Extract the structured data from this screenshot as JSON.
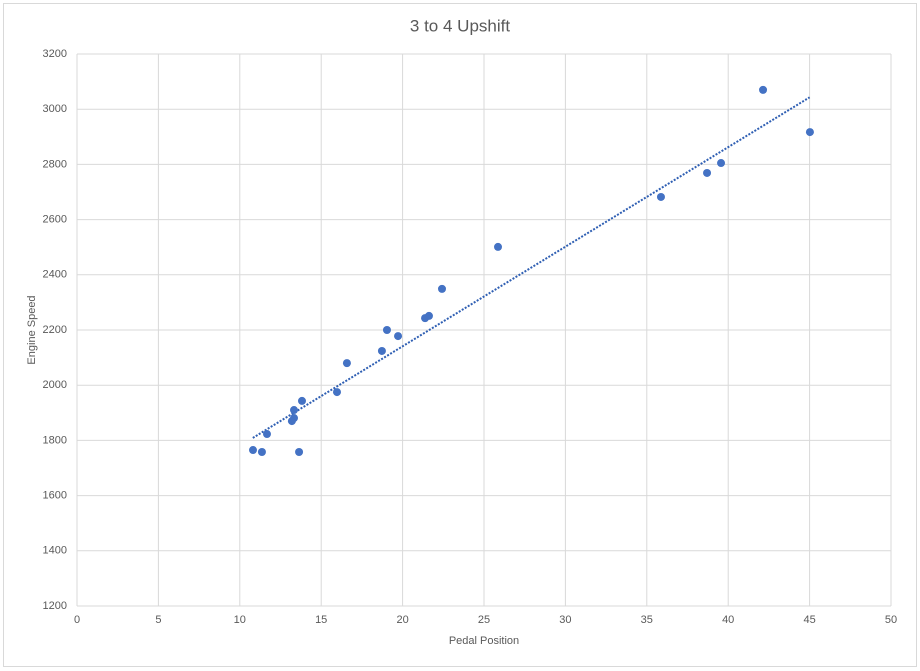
{
  "chart_data": {
    "type": "scatter",
    "title": "3 to 4 Upshift",
    "x_label": "Pedal Position",
    "y_label": "Engine Speed",
    "series": [
      {
        "color": "#4472c4",
        "x": [
          10.81,
          11.36,
          11.67,
          13.2,
          13.33,
          13.33,
          13.64,
          13.82,
          15.97,
          16.58,
          18.73,
          19.04,
          19.72,
          21.38,
          21.62,
          22.42,
          25.86,
          35.87,
          38.7,
          39.56,
          42.14,
          45.02
        ],
        "values": [
          1765,
          1758,
          1823,
          1870,
          1881,
          1910,
          1758,
          1943,
          1975,
          2080,
          2124,
          2200,
          2178,
          2243,
          2251,
          2349,
          2501,
          2682,
          2769,
          2805,
          3070,
          2917
        ]
      }
    ],
    "trendline": {
      "color": "#2f5fb3",
      "x": [
        10.8,
        45
      ],
      "values": [
        1809,
        3043
      ]
    },
    "xlim": [
      0,
      50
    ],
    "xticks": [
      0,
      5,
      10,
      15,
      20,
      25,
      30,
      35,
      40,
      45,
      50
    ],
    "ylim": [
      1200,
      3200
    ],
    "yticks": [
      1200,
      1400,
      1600,
      1800,
      2000,
      2200,
      2400,
      2600,
      2800,
      3000,
      3200
    ],
    "grid": true
  }
}
